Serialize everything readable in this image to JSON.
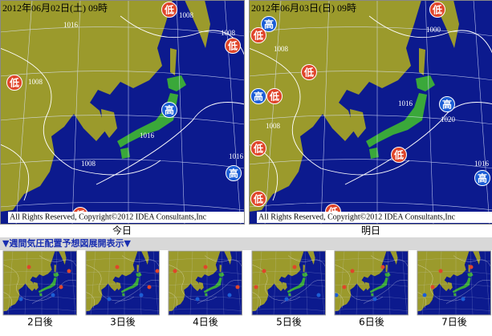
{
  "maps": [
    {
      "timestamp": "2012年06月02日(土) 09時",
      "symbols": [
        "低",
        "低",
        "低",
        "高",
        "高",
        "低"
      ],
      "isobars": [
        "1008",
        "1008",
        "1016",
        "1008",
        "1016",
        "1008",
        "1016"
      ],
      "copyright": "All Rights Reserved, Copyright©2012 IDEA Consultants,Inc",
      "caption": "今日"
    },
    {
      "timestamp": "2012年06月03日(日) 09時",
      "symbols": [
        "低",
        "高",
        "低",
        "低",
        "高",
        "低",
        "高",
        "低",
        "低",
        "高",
        "低",
        "低"
      ],
      "isobars": [
        "1000",
        "1008",
        "1016",
        "1020",
        "1008",
        "1016"
      ],
      "copyright": "All Rights Reserved, Copyright©2012 IDEA Consultants,Inc",
      "caption": "明日"
    }
  ],
  "weekly": {
    "toggle": "▼週間気圧配置予想図展開表示▼",
    "thumbnails": [
      "2日後",
      "3日後",
      "4日後",
      "5日後",
      "6日後",
      "7日後"
    ]
  }
}
